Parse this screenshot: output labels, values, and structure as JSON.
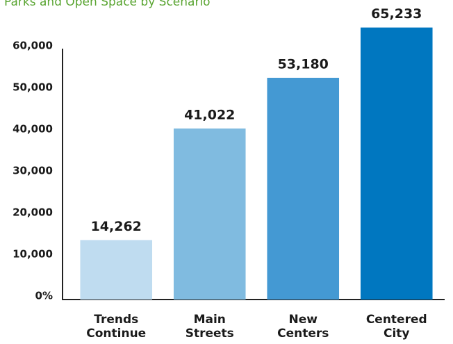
{
  "chart_data": {
    "type": "bar",
    "title": "Parks and Open Space by Scenario",
    "categories": [
      "Trends Continue",
      "Main Streets",
      "New Centers",
      "Centered City"
    ],
    "values": [
      14262,
      41022,
      53180,
      65233
    ],
    "value_labels": [
      "14,262",
      "41,022",
      "53,180",
      "65,233"
    ],
    "colors": [
      "#bfdcf0",
      "#80bbe0",
      "#4499d3",
      "#0077c0"
    ],
    "ylim": [
      0,
      60000
    ],
    "yticks": [
      {
        "value": 0,
        "label": "0%"
      },
      {
        "value": 10000,
        "label": "10,000"
      },
      {
        "value": 20000,
        "label": "20,000"
      },
      {
        "value": 30000,
        "label": "30,000"
      },
      {
        "value": 40000,
        "label": "40,000"
      },
      {
        "value": 50000,
        "label": "50,000"
      },
      {
        "value": 60000,
        "label": "60,000"
      }
    ],
    "grid": false
  }
}
